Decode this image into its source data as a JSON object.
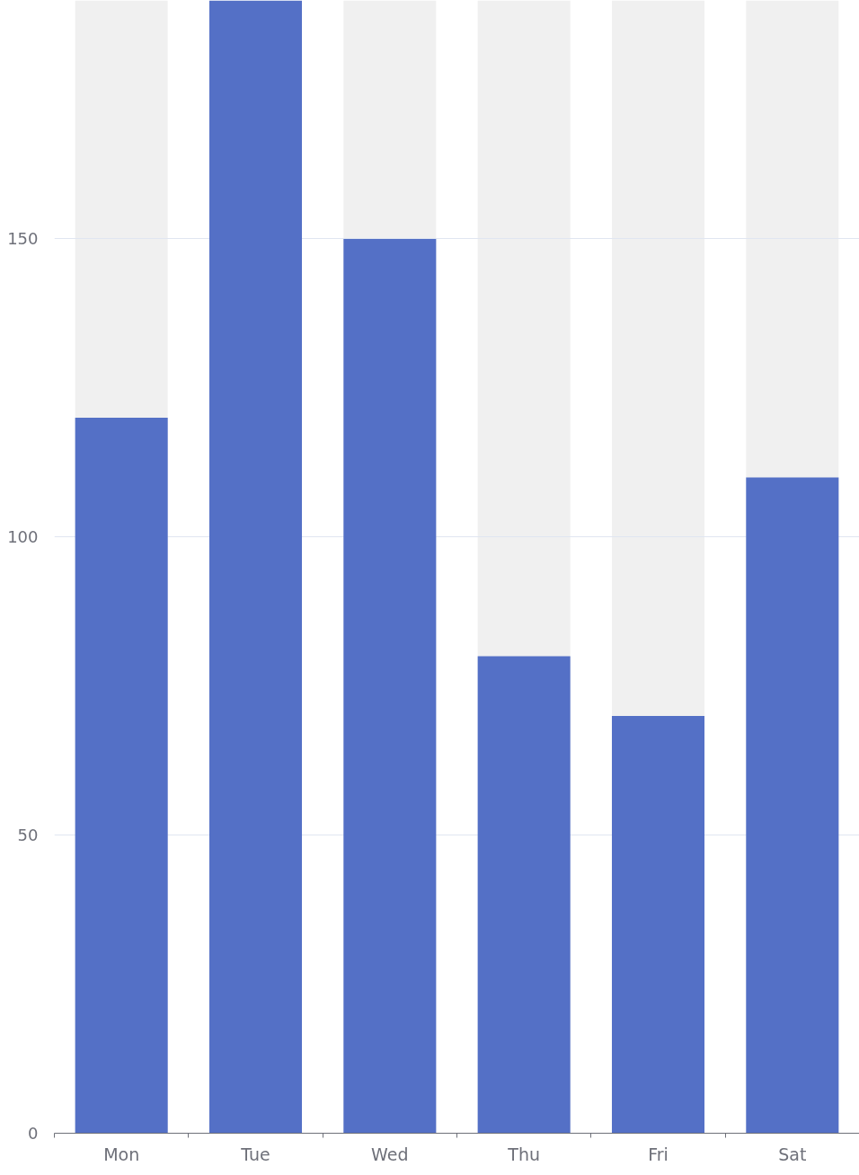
{
  "chart_data": {
    "type": "bar",
    "categories": [
      "Mon",
      "Tue",
      "Wed",
      "Thu",
      "Fri",
      "Sat"
    ],
    "values": [
      120,
      190,
      150,
      80,
      70,
      110
    ],
    "color": "#5470c6",
    "ylim": [
      0,
      190
    ],
    "yticks": [
      0,
      50,
      100,
      150
    ],
    "grid": "y",
    "bands": [
      {
        "axis": "x",
        "from": "Mon",
        "to": "Mon",
        "color": "#f0f0f0"
      },
      {
        "axis": "x",
        "from": "Wed",
        "to": "Wed",
        "color": "#f0f0f0"
      },
      {
        "axis": "x",
        "from": "Thu",
        "to": "Thu",
        "color": "#f0f0f0"
      },
      {
        "axis": "x",
        "from": "Fri",
        "to": "Fri",
        "color": "#f0f0f0"
      },
      {
        "axis": "x",
        "from": "Sat",
        "to": "Sat",
        "color": "#f0f0f0"
      }
    ]
  }
}
